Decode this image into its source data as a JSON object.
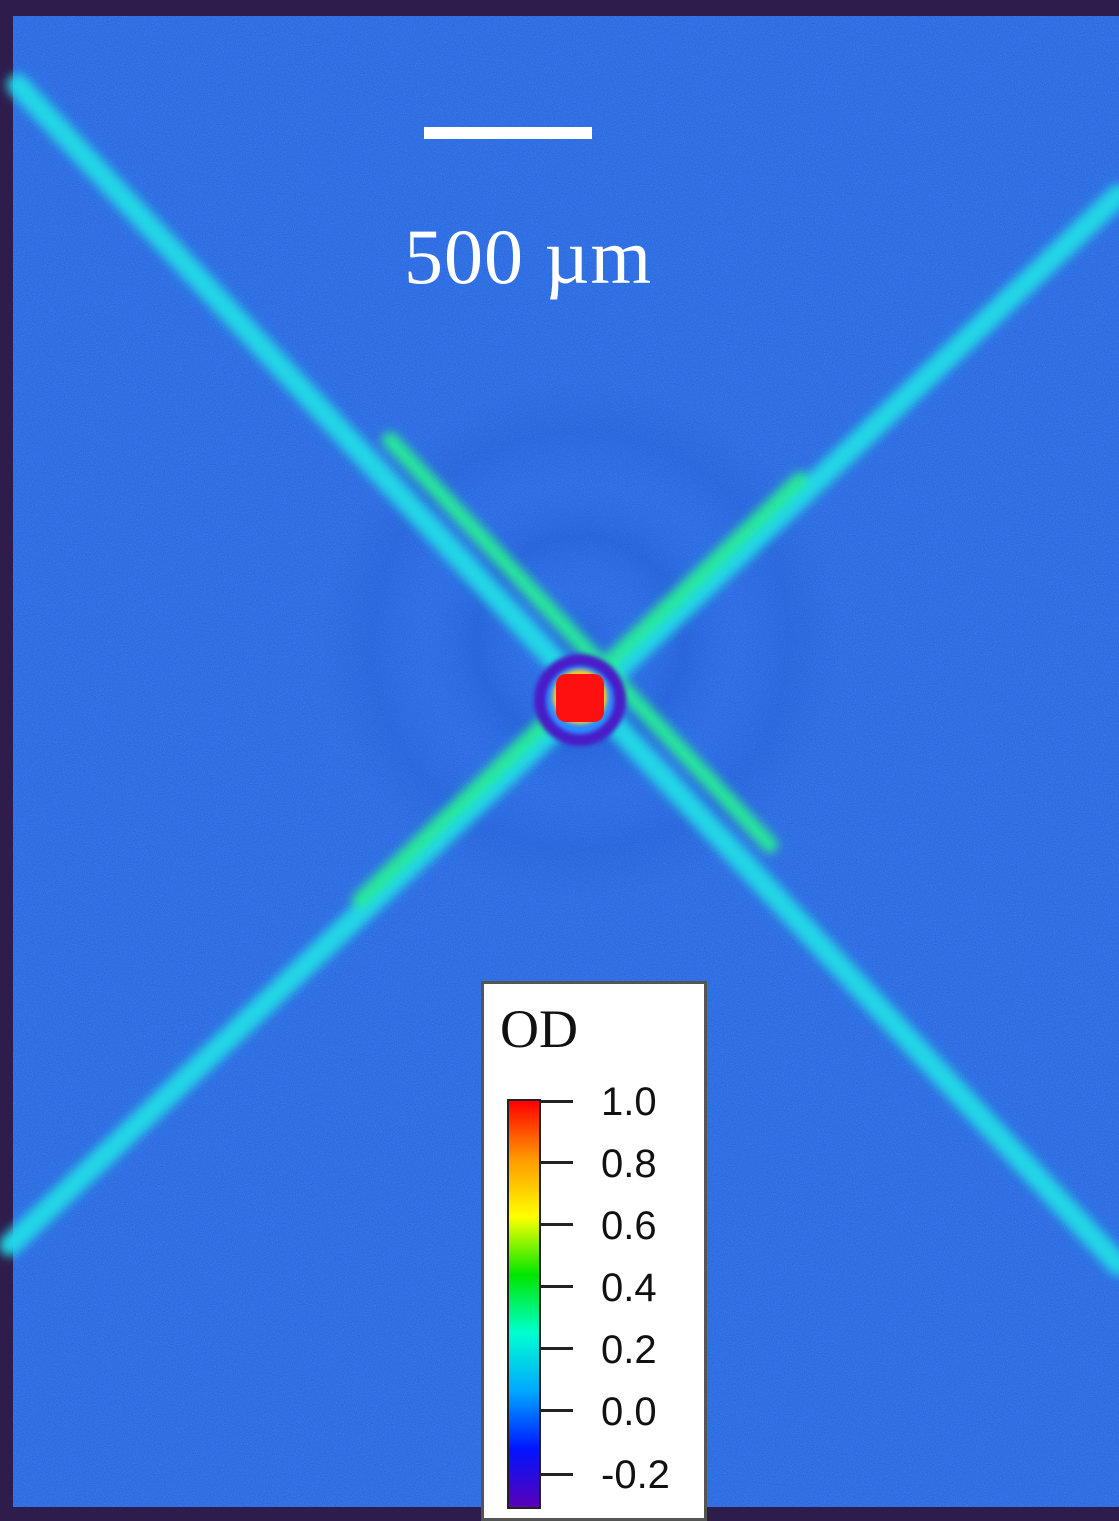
{
  "scale_bar": {
    "label": "500 µm"
  },
  "colorbar": {
    "title": "OD",
    "ticks": [
      "1.0",
      "0.8",
      "0.6",
      "0.4",
      "0.2",
      "0.0",
      "-0.2"
    ],
    "range": [
      -0.2,
      1.0
    ],
    "colormap": [
      "#5a00b8",
      "#0015ff",
      "#00a8ff",
      "#00ffd0",
      "#00e600",
      "#ffff00",
      "#ff9900",
      "#ff0000"
    ]
  },
  "colors": {
    "frame": "#2e1c4d",
    "background": "#1f62e0",
    "beam": "#22e0d8",
    "core": "#ff1010"
  }
}
